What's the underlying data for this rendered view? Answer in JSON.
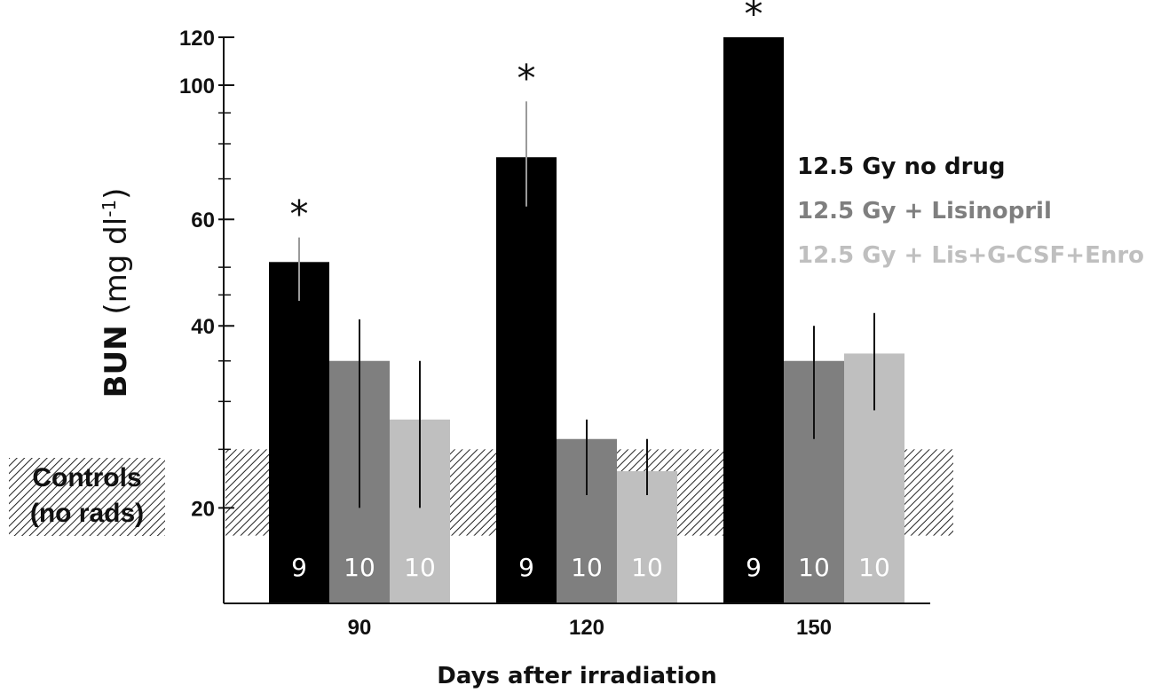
{
  "chart_data": {
    "type": "bar",
    "title": "",
    "xlabel": "Days after irradiation",
    "ylabel": {
      "bold": "BUN",
      "unit_open": "(mg dl",
      "unit_sup": "-1",
      "unit_close": ")"
    },
    "y_scale": "log",
    "ylim": [
      14,
      120
    ],
    "y_ticks": [
      20,
      40,
      60,
      100,
      120
    ],
    "y_minor_ticks": [
      25,
      30,
      35,
      45,
      50,
      70,
      80,
      90
    ],
    "categories": [
      "90",
      "120",
      "150"
    ],
    "series": [
      {
        "name": "12.5 Gy no drug",
        "color": "#000000",
        "values": [
          51,
          76,
          120
        ],
        "error": [
          [
            44,
            56
          ],
          [
            63,
            94
          ],
          null
        ],
        "n": [
          "9",
          "9",
          "9"
        ],
        "significant": [
          true,
          true,
          true
        ]
      },
      {
        "name": "12.5 Gy + Lisinopril",
        "color": "#7f7f7f",
        "values": [
          35,
          26,
          35
        ],
        "error": [
          [
            20,
            41
          ],
          [
            21,
            28
          ],
          [
            26,
            40
          ]
        ],
        "n": [
          "10",
          "10",
          "10"
        ],
        "significant": [
          false,
          false,
          false
        ]
      },
      {
        "name": "12.5 Gy + Lis+G-CSF+Enro",
        "color": "#bfbfbf",
        "values": [
          28,
          23,
          36
        ],
        "error": [
          [
            20,
            35
          ],
          [
            21,
            26
          ],
          [
            29,
            42
          ]
        ],
        "n": [
          "10",
          "10",
          "10"
        ],
        "significant": [
          false,
          false,
          false
        ]
      }
    ],
    "significance_marker": "*",
    "legend": {
      "placement": "right"
    },
    "controls_band": {
      "range": [
        18,
        25
      ],
      "label_line1": "Controls",
      "label_line2": "(no rads)"
    },
    "grid": false
  }
}
